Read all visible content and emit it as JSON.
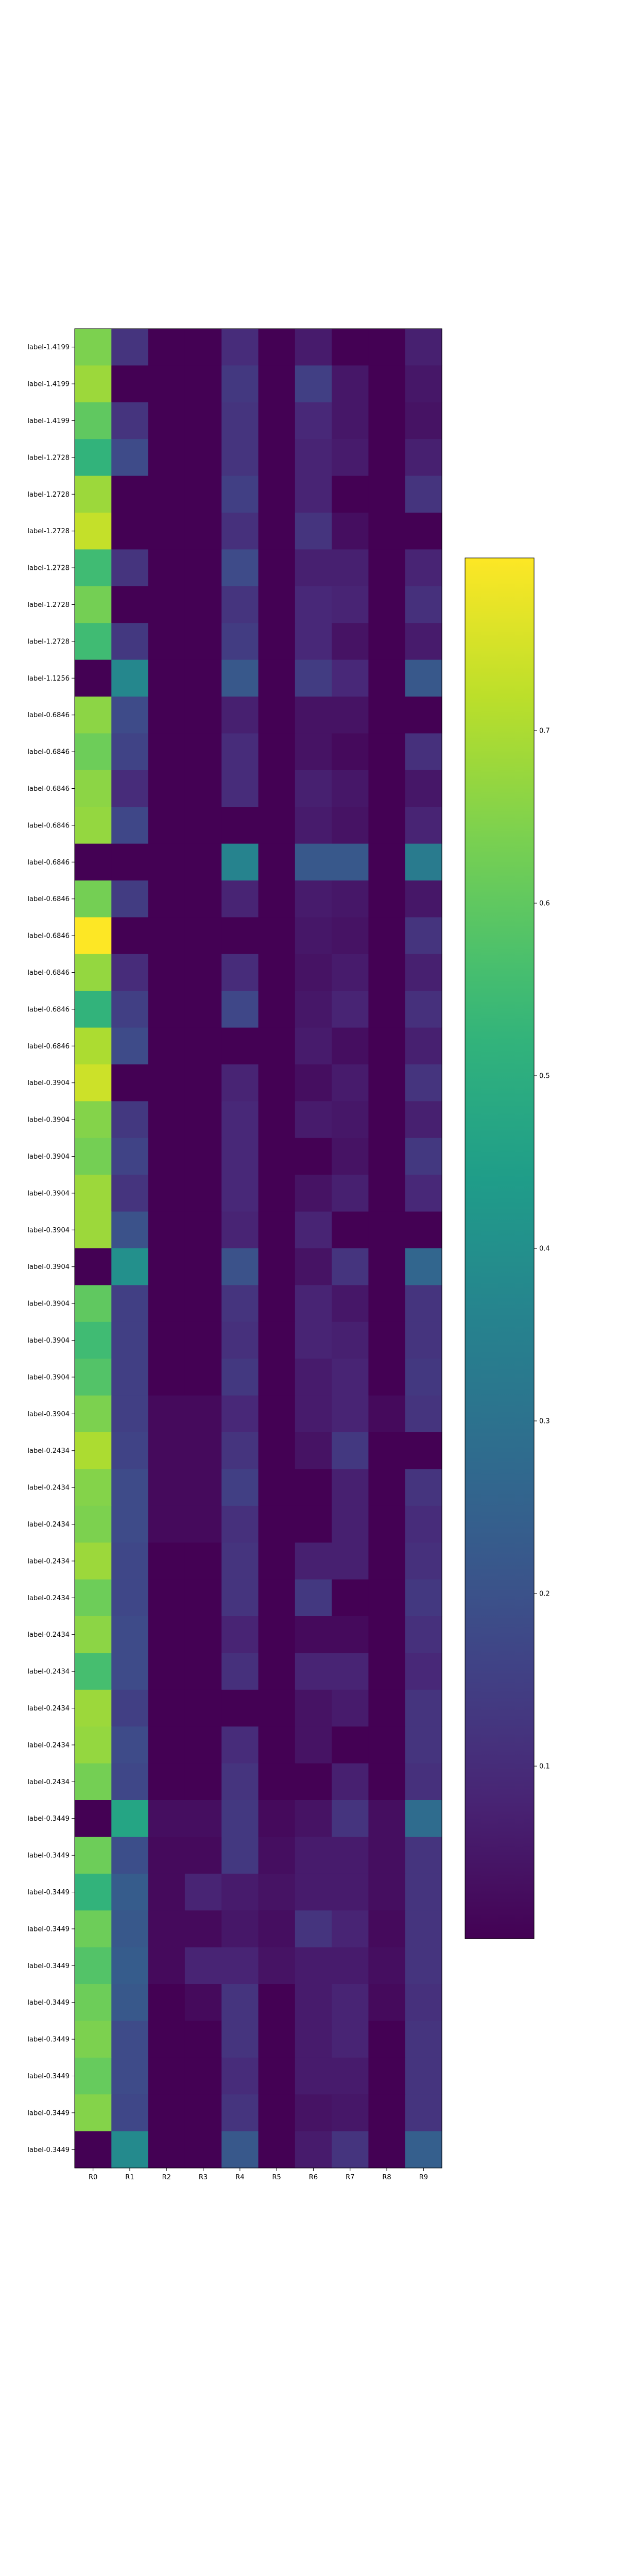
{
  "chart_data": {
    "type": "heatmap",
    "title": "",
    "xlabel": "",
    "ylabel": "",
    "colormap": "viridis",
    "value_range": [
      0.0,
      0.8
    ],
    "colorbar_ticks": [
      "0.1",
      "0.2",
      "0.3",
      "0.4",
      "0.5",
      "0.6",
      "0.7"
    ],
    "colorbar_tick_values": [
      0.1,
      0.2,
      0.3,
      0.4,
      0.5,
      0.6,
      0.7
    ],
    "columns": [
      "R0",
      "R1",
      "R2",
      "R3",
      "R4",
      "R5",
      "R6",
      "R7",
      "R8",
      "R9"
    ],
    "rows": [
      "label-1.4199",
      "label-1.4199",
      "label-1.4199",
      "label-1.2728",
      "label-1.2728",
      "label-1.2728",
      "label-1.2728",
      "label-1.2728",
      "label-1.2728",
      "label-1.1256",
      "label-0.6846",
      "label-0.6846",
      "label-0.6846",
      "label-0.6846",
      "label-0.6846",
      "label-0.6846",
      "label-0.6846",
      "label-0.6846",
      "label-0.6846",
      "label-0.6846",
      "label-0.3904",
      "label-0.3904",
      "label-0.3904",
      "label-0.3904",
      "label-0.3904",
      "label-0.3904",
      "label-0.3904",
      "label-0.3904",
      "label-0.3904",
      "label-0.3904",
      "label-0.2434",
      "label-0.2434",
      "label-0.2434",
      "label-0.2434",
      "label-0.2434",
      "label-0.2434",
      "label-0.2434",
      "label-0.2434",
      "label-0.2434",
      "label-0.2434",
      "label-0.3449",
      "label-0.3449",
      "label-0.3449",
      "label-0.3449",
      "label-0.3449",
      "label-0.3449",
      "label-0.3449",
      "label-0.3449",
      "label-0.3449",
      "label-0.3449"
    ],
    "values": [
      [
        0.64,
        0.12,
        0.0,
        0.0,
        0.1,
        0.0,
        0.06,
        0.0,
        0.0,
        0.07
      ],
      [
        0.68,
        0.0,
        0.0,
        0.0,
        0.13,
        0.0,
        0.15,
        0.05,
        0.0,
        0.05
      ],
      [
        0.6,
        0.12,
        0.0,
        0.0,
        0.12,
        0.0,
        0.09,
        0.05,
        0.0,
        0.04
      ],
      [
        0.52,
        0.18,
        0.0,
        0.0,
        0.12,
        0.0,
        0.08,
        0.06,
        0.0,
        0.07
      ],
      [
        0.68,
        0.0,
        0.0,
        0.0,
        0.15,
        0.0,
        0.08,
        0.0,
        0.0,
        0.12
      ],
      [
        0.73,
        0.0,
        0.0,
        0.0,
        0.11,
        0.0,
        0.12,
        0.03,
        0.0,
        0.0
      ],
      [
        0.55,
        0.12,
        0.0,
        0.0,
        0.18,
        0.0,
        0.07,
        0.07,
        0.0,
        0.08
      ],
      [
        0.63,
        0.0,
        0.0,
        0.0,
        0.12,
        0.0,
        0.09,
        0.08,
        0.0,
        0.11
      ],
      [
        0.55,
        0.13,
        0.0,
        0.0,
        0.14,
        0.0,
        0.09,
        0.04,
        0.0,
        0.06
      ],
      [
        0.0,
        0.37,
        0.0,
        0.0,
        0.22,
        0.0,
        0.14,
        0.09,
        0.0,
        0.22
      ],
      [
        0.66,
        0.18,
        0.0,
        0.0,
        0.07,
        0.0,
        0.04,
        0.04,
        0.0,
        0.0
      ],
      [
        0.62,
        0.16,
        0.0,
        0.0,
        0.1,
        0.0,
        0.04,
        0.02,
        0.0,
        0.11
      ],
      [
        0.66,
        0.1,
        0.0,
        0.0,
        0.1,
        0.0,
        0.07,
        0.05,
        0.0,
        0.05
      ],
      [
        0.67,
        0.17,
        0.0,
        0.0,
        0.0,
        0.0,
        0.06,
        0.04,
        0.0,
        0.08
      ],
      [
        0.0,
        0.0,
        0.0,
        0.0,
        0.36,
        0.0,
        0.22,
        0.22,
        0.0,
        0.33
      ],
      [
        0.63,
        0.14,
        0.0,
        0.0,
        0.08,
        0.0,
        0.06,
        0.05,
        0.0,
        0.05
      ],
      [
        0.8,
        0.0,
        0.0,
        0.0,
        0.0,
        0.0,
        0.05,
        0.04,
        0.0,
        0.12
      ],
      [
        0.67,
        0.1,
        0.0,
        0.0,
        0.1,
        0.0,
        0.04,
        0.06,
        0.0,
        0.07
      ],
      [
        0.52,
        0.15,
        0.0,
        0.0,
        0.17,
        0.0,
        0.05,
        0.08,
        0.0,
        0.11
      ],
      [
        0.7,
        0.18,
        0.0,
        0.0,
        0.0,
        0.0,
        0.06,
        0.03,
        0.0,
        0.07
      ],
      [
        0.74,
        0.0,
        0.0,
        0.0,
        0.08,
        0.0,
        0.03,
        0.06,
        0.0,
        0.12
      ],
      [
        0.65,
        0.13,
        0.0,
        0.0,
        0.09,
        0.0,
        0.06,
        0.05,
        0.0,
        0.07
      ],
      [
        0.63,
        0.16,
        0.0,
        0.0,
        0.09,
        0.0,
        0.0,
        0.04,
        0.0,
        0.13
      ],
      [
        0.68,
        0.12,
        0.0,
        0.0,
        0.09,
        0.0,
        0.04,
        0.07,
        0.0,
        0.09
      ],
      [
        0.68,
        0.2,
        0.0,
        0.0,
        0.08,
        0.0,
        0.08,
        0.0,
        0.0,
        0.0
      ],
      [
        0.0,
        0.4,
        0.0,
        0.0,
        0.2,
        0.0,
        0.04,
        0.12,
        0.0,
        0.26
      ],
      [
        0.6,
        0.15,
        0.0,
        0.0,
        0.12,
        0.0,
        0.08,
        0.05,
        0.0,
        0.12
      ],
      [
        0.55,
        0.15,
        0.0,
        0.0,
        0.11,
        0.0,
        0.08,
        0.07,
        0.0,
        0.12
      ],
      [
        0.58,
        0.15,
        0.0,
        0.0,
        0.13,
        0.0,
        0.06,
        0.08,
        0.0,
        0.13
      ],
      [
        0.64,
        0.15,
        0.02,
        0.02,
        0.09,
        0.0,
        0.06,
        0.08,
        0.02,
        0.12
      ],
      [
        0.7,
        0.16,
        0.02,
        0.02,
        0.12,
        0.0,
        0.04,
        0.13,
        0.0,
        0.0
      ],
      [
        0.65,
        0.18,
        0.02,
        0.02,
        0.15,
        0.0,
        0.0,
        0.07,
        0.0,
        0.12
      ],
      [
        0.64,
        0.18,
        0.02,
        0.02,
        0.11,
        0.0,
        0.0,
        0.07,
        0.0,
        0.1
      ],
      [
        0.68,
        0.17,
        0.0,
        0.0,
        0.12,
        0.0,
        0.07,
        0.07,
        0.0,
        0.11
      ],
      [
        0.62,
        0.17,
        0.0,
        0.0,
        0.12,
        0.0,
        0.13,
        0.0,
        0.0,
        0.13
      ],
      [
        0.66,
        0.18,
        0.0,
        0.0,
        0.08,
        0.0,
        0.02,
        0.02,
        0.0,
        0.11
      ],
      [
        0.56,
        0.18,
        0.0,
        0.0,
        0.11,
        0.0,
        0.08,
        0.08,
        0.0,
        0.09
      ],
      [
        0.68,
        0.15,
        0.0,
        0.0,
        0.0,
        0.0,
        0.04,
        0.06,
        0.0,
        0.12
      ],
      [
        0.67,
        0.18,
        0.0,
        0.0,
        0.1,
        0.0,
        0.04,
        0.0,
        0.0,
        0.12
      ],
      [
        0.63,
        0.17,
        0.0,
        0.0,
        0.12,
        0.0,
        0.0,
        0.07,
        0.0,
        0.11
      ],
      [
        0.0,
        0.47,
        0.03,
        0.03,
        0.13,
        0.02,
        0.04,
        0.12,
        0.03,
        0.28
      ],
      [
        0.62,
        0.19,
        0.02,
        0.02,
        0.13,
        0.03,
        0.06,
        0.06,
        0.03,
        0.12
      ],
      [
        0.52,
        0.23,
        0.02,
        0.08,
        0.06,
        0.04,
        0.06,
        0.06,
        0.03,
        0.12
      ],
      [
        0.62,
        0.22,
        0.02,
        0.02,
        0.05,
        0.03,
        0.12,
        0.08,
        0.02,
        0.12
      ],
      [
        0.58,
        0.23,
        0.02,
        0.08,
        0.08,
        0.04,
        0.06,
        0.06,
        0.03,
        0.12
      ],
      [
        0.62,
        0.22,
        0.0,
        0.02,
        0.12,
        0.0,
        0.06,
        0.08,
        0.02,
        0.11
      ],
      [
        0.64,
        0.18,
        0.0,
        0.0,
        0.12,
        0.0,
        0.06,
        0.08,
        0.0,
        0.12
      ],
      [
        0.61,
        0.18,
        0.0,
        0.0,
        0.1,
        0.0,
        0.06,
        0.06,
        0.0,
        0.12
      ],
      [
        0.65,
        0.17,
        0.0,
        0.0,
        0.12,
        0.0,
        0.04,
        0.05,
        0.0,
        0.12
      ],
      [
        0.0,
        0.38,
        0.0,
        0.0,
        0.22,
        0.0,
        0.06,
        0.12,
        0.0,
        0.24
      ]
    ]
  }
}
